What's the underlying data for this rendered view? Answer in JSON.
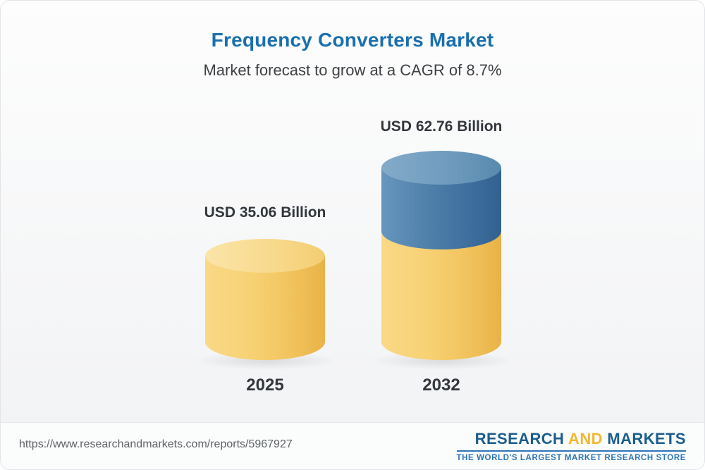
{
  "header": {
    "title": "Frequency Converters Market",
    "subtitle": "Market forecast to grow at a CAGR of 8.7%"
  },
  "chart_data": {
    "type": "bar",
    "title": "Frequency Converters Market",
    "subtitle": "Market forecast to grow at a CAGR of 8.7%",
    "categories": [
      "2025",
      "2032"
    ],
    "values": [
      35.06,
      62.76
    ],
    "value_labels": [
      "USD 35.06 Billion",
      "USD 62.76 Billion"
    ],
    "unit": "USD Billion",
    "cagr": "8.7%",
    "bar_style": "3d-cylinder",
    "colors": {
      "bar_2025": "#F3CB66",
      "bar_2032_base": "#F3CB66",
      "bar_2032_top": "#4E80AA",
      "title": "#1A6FAD",
      "label_text": "#33373C"
    },
    "legend_position": "none",
    "grid": false
  },
  "footer": {
    "url": "https://www.researchandmarkets.com/reports/5967927",
    "logo": {
      "research": "RESEARCH",
      "and": " AND ",
      "markets": "MARKETS",
      "tagline": "THE WORLD'S LARGEST MARKET RESEARCH STORE"
    }
  }
}
